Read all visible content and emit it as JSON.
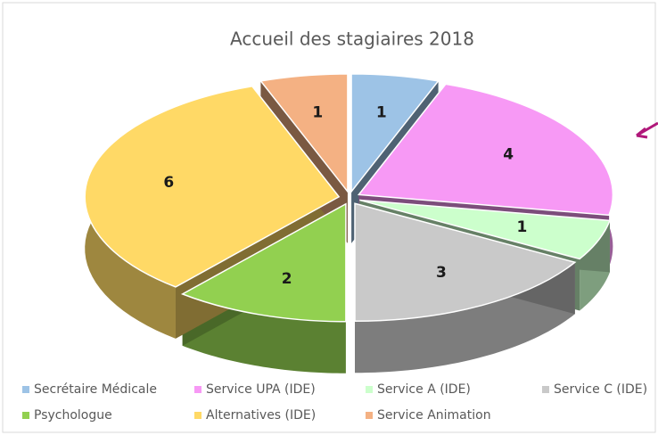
{
  "chart_data": {
    "type": "pie",
    "title": "Accueil des stagiaires 2018",
    "categories": [
      "Secrétaire Médicale",
      "Service UPA (IDE)",
      "Service A (IDE)",
      "Service C (IDE)",
      "Psychologue",
      "Alternatives (IDE)",
      "Service Animation"
    ],
    "values": [
      1,
      4,
      1,
      3,
      2,
      6,
      1
    ],
    "colors": [
      "#9dc3e6",
      "#f799f5",
      "#ccffcc",
      "#c9c9c9",
      "#92d050",
      "#ffd966",
      "#f4b183"
    ],
    "legend": "bottom"
  }
}
